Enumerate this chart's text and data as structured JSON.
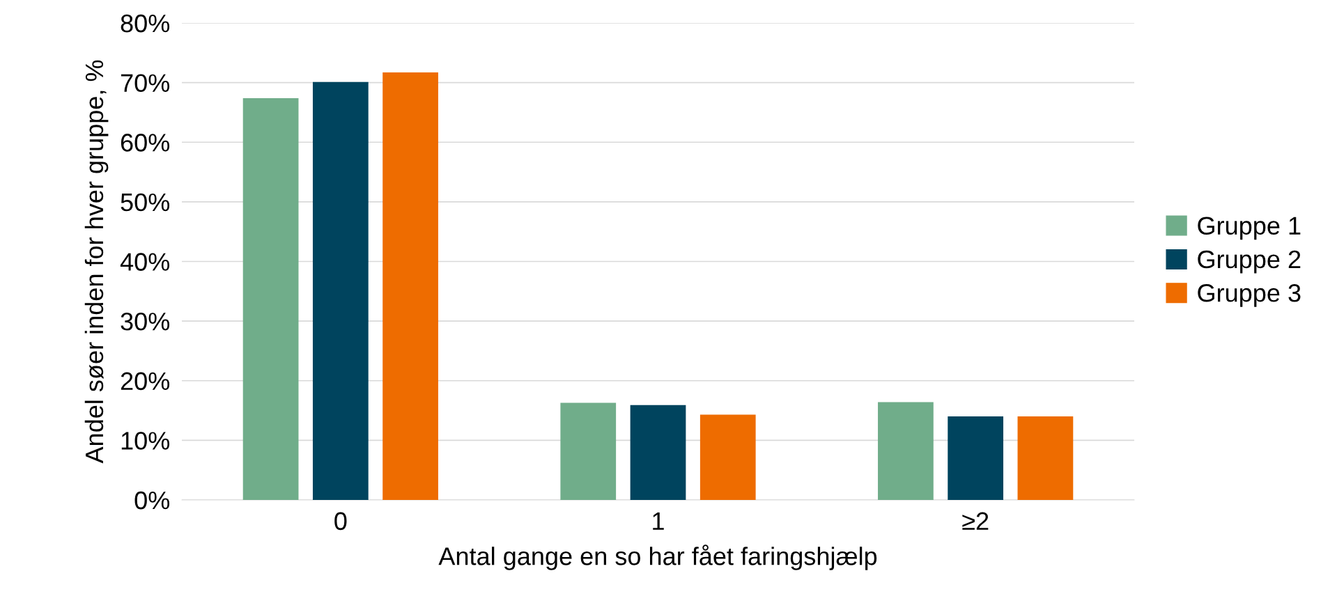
{
  "chart_data": {
    "type": "bar",
    "xlabel": "Antal gange en so har fået faringshjælp",
    "ylabel": "Andel søer inden for hver gruppe, %",
    "categories": [
      "0",
      "1",
      "≥2"
    ],
    "series": [
      {
        "name": "Gruppe 1",
        "color": "#70ad8a",
        "values": [
          67.4,
          16.3,
          16.4
        ]
      },
      {
        "name": "Gruppe 2",
        "color": "#00445e",
        "values": [
          70.1,
          15.9,
          14.0
        ]
      },
      {
        "name": "Gruppe 3",
        "color": "#ee6c00",
        "values": [
          71.7,
          14.3,
          14.0
        ]
      }
    ],
    "ylim": [
      0,
      80
    ],
    "yticks": [
      {
        "value": 0,
        "label": "0%"
      },
      {
        "value": 10,
        "label": "10%"
      },
      {
        "value": 20,
        "label": "20%"
      },
      {
        "value": 30,
        "label": "30%"
      },
      {
        "value": 40,
        "label": "40%"
      },
      {
        "value": 50,
        "label": "50%"
      },
      {
        "value": 60,
        "label": "60%"
      },
      {
        "value": 70,
        "label": "70%"
      },
      {
        "value": 80,
        "label": "80%"
      }
    ],
    "grid": "y",
    "legend": "right"
  }
}
